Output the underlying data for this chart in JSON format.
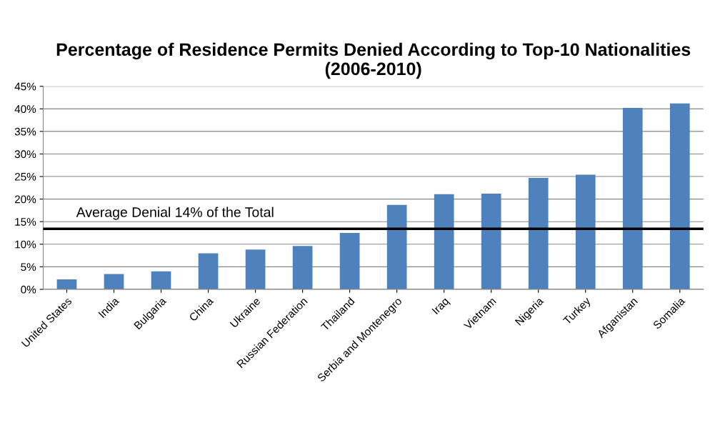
{
  "chart_data": {
    "type": "bar",
    "title": "Percentage of Residence Permits Denied According to Top-10 Nationalities (2006-2010)",
    "categories": [
      "United States",
      "India",
      "Bulgaria",
      "China",
      "Ukraine",
      "Russian Federation",
      "Thailand",
      "Serbia and Montenegro",
      "Iraq",
      "Vietnam",
      "Nigeria",
      "Turkey",
      "Afganistan",
      "Somalia"
    ],
    "values": [
      2.2,
      3.4,
      4.0,
      8.0,
      8.8,
      9.6,
      12.5,
      18.7,
      21.1,
      21.2,
      24.7,
      25.4,
      40.2,
      41.2
    ],
    "color": "#4f81bd",
    "ylim": [
      0,
      45
    ],
    "yticks": [
      {
        "value": 0,
        "label": "0%"
      },
      {
        "value": 5,
        "label": "5%"
      },
      {
        "value": 10,
        "label": "10%"
      },
      {
        "value": 15,
        "label": "15%"
      },
      {
        "value": 20,
        "label": "20%"
      },
      {
        "value": 25,
        "label": "25%"
      },
      {
        "value": 30,
        "label": "30%"
      },
      {
        "value": 35,
        "label": "35%"
      },
      {
        "value": 40,
        "label": "40%"
      },
      {
        "value": 45,
        "label": "45%"
      }
    ],
    "grid": "y",
    "ref_lines": [
      {
        "axis": "y",
        "value": 13.4,
        "label": "Average Denial 14% of the Total",
        "color": "#000000"
      }
    ]
  }
}
